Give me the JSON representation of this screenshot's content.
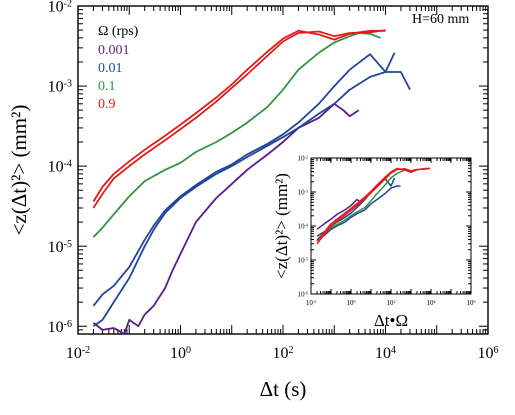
{
  "chart_data": {
    "type": "line",
    "annotation": "H=60 mm",
    "legend_title": "Ω (rps)",
    "legend_placement": "top-left",
    "xlabel": "Δt (s)",
    "ylabel": "<z(Δt)²> (mm²)",
    "xscale": "log",
    "yscale": "log",
    "xlim": [
      0.01,
      1000000
    ],
    "ylim": [
      8e-07,
      0.01
    ],
    "x_tick_labels": [
      {
        "base": "10",
        "exp": "-2"
      },
      {
        "base": "10",
        "exp": "0"
      },
      {
        "base": "10",
        "exp": "2"
      },
      {
        "base": "10",
        "exp": "4"
      },
      {
        "base": "10",
        "exp": "6"
      }
    ],
    "y_tick_labels": [
      {
        "base": "10",
        "exp": "-6"
      },
      {
        "base": "10",
        "exp": "-5"
      },
      {
        "base": "10",
        "exp": "-4"
      },
      {
        "base": "10",
        "exp": "-3"
      },
      {
        "base": "10",
        "exp": "-2"
      }
    ],
    "series": [
      {
        "name": "0.001",
        "color": "#5b1a8c",
        "runs": [
          {
            "x": [
              0.02,
              0.03,
              0.05,
              0.08,
              0.1,
              0.15,
              0.2,
              0.3,
              0.5,
              0.7,
              1,
              2,
              5,
              10,
              20,
              50,
              100,
              200,
              500,
              1000,
              1500,
              2000,
              3000
            ],
            "y": [
              1.1e-06,
              9e-07,
              9.5e-07,
              8e-07,
              1.2e-06,
              1e-06,
              1.4e-06,
              1.8e-06,
              3e-06,
              5e-06,
              8e-06,
              2e-05,
              4e-05,
              6e-05,
              9e-05,
              0.00014,
              0.0002,
              0.0003,
              0.0004,
              0.0006,
              0.0005,
              0.00042,
              0.0005
            ]
          }
        ]
      },
      {
        "name": "0.01",
        "color": "#22459a",
        "runs": [
          {
            "x": [
              0.02,
              0.03,
              0.05,
              0.1,
              0.2,
              0.3,
              0.5,
              1,
              2,
              5,
              10,
              20,
              50,
              100,
              200,
              500,
              1000,
              2000,
              5000,
              10000,
              20000,
              30000
            ],
            "y": [
              1e-06,
              1.2e-06,
              2e-06,
              4e-06,
              1e-05,
              1.6e-05,
              2.6e-05,
              4e-05,
              5.5e-05,
              8e-05,
              0.0001,
              0.00013,
              0.00018,
              0.00023,
              0.0003,
              0.00045,
              0.0006,
              0.0009,
              0.0013,
              0.0015,
              0.0015,
              0.0009
            ]
          },
          {
            "x": [
              0.02,
              0.03,
              0.05,
              0.1,
              0.2,
              0.3,
              0.5,
              1,
              2,
              5,
              10,
              20,
              50,
              100,
              200,
              500,
              1000,
              2000,
              5000,
              10000,
              15000
            ],
            "y": [
              1.8e-06,
              2.5e-06,
              3.2e-06,
              5.5e-06,
              1.2e-05,
              1.8e-05,
              2.8e-05,
              4.2e-05,
              5.8e-05,
              8.5e-05,
              0.000105,
              0.00014,
              0.00019,
              0.00025,
              0.00035,
              0.0006,
              0.001,
              0.0016,
              0.0025,
              0.0015,
              0.0026
            ]
          }
        ]
      },
      {
        "name": "0.1",
        "color": "#2f9440",
        "runs": [
          {
            "x": [
              0.02,
              0.03,
              0.05,
              0.1,
              0.2,
              0.5,
              1,
              2,
              5,
              10,
              20,
              50,
              100,
              200,
              500,
              1000,
              2000,
              3000,
              5000,
              8000
            ],
            "y": [
              1.3e-05,
              1.7e-05,
              2.5e-05,
              4.2e-05,
              6.5e-05,
              9e-05,
              0.00011,
              0.00015,
              0.0002,
              0.00026,
              0.00035,
              0.00055,
              0.0009,
              0.0016,
              0.0026,
              0.0035,
              0.0042,
              0.0046,
              0.0045,
              0.004
            ]
          }
        ]
      },
      {
        "name": "0.9",
        "color": "#e01c1c",
        "runs": [
          {
            "x": [
              0.02,
              0.03,
              0.05,
              0.1,
              0.2,
              0.5,
              1,
              2,
              5,
              10,
              20,
              50,
              100,
              200,
              500,
              1000,
              2000,
              5000,
              10000
            ],
            "y": [
              3e-05,
              4.5e-05,
              7e-05,
              0.0001,
              0.00014,
              0.00021,
              0.00029,
              0.0004,
              0.00064,
              0.00095,
              0.0014,
              0.0024,
              0.0036,
              0.0046,
              0.0048,
              0.0042,
              0.0046,
              0.0047,
              0.005
            ]
          },
          {
            "x": [
              0.02,
              0.03,
              0.05,
              0.1,
              0.2,
              0.5,
              1,
              2,
              5,
              10,
              20,
              50,
              100,
              200,
              500,
              1000,
              2000,
              5000,
              10000
            ],
            "y": [
              3.6e-05,
              5.5e-05,
              8e-05,
              0.000115,
              0.00016,
              0.00024,
              0.00033,
              0.00046,
              0.00072,
              0.00105,
              0.0016,
              0.0027,
              0.0039,
              0.0049,
              0.0044,
              0.0038,
              0.0045,
              0.0049,
              0.0049
            ]
          }
        ]
      }
    ],
    "inset": {
      "xlabel": "Δt•Ω",
      "ylabel": "<z(Δt)²> (mm²)",
      "xlim": [
        0.01,
        1000000
      ],
      "ylim": [
        1e-06,
        0.01
      ],
      "x_tick_labels": [
        {
          "base": "10",
          "exp": "-2"
        },
        {
          "base": "10",
          "exp": "0"
        },
        {
          "base": "10",
          "exp": "2"
        },
        {
          "base": "10",
          "exp": "4"
        },
        {
          "base": "10",
          "exp": "6"
        }
      ],
      "y_tick_labels": [
        {
          "base": "10",
          "exp": "-6"
        },
        {
          "base": "10",
          "exp": "-5"
        },
        {
          "base": "10",
          "exp": "-4"
        },
        {
          "base": "10",
          "exp": "-3"
        },
        {
          "base": "10",
          "exp": "-2"
        }
      ],
      "series": [
        {
          "name": "0.001",
          "color": "#5b1a8c",
          "runs": [
            {
              "x": [
                0.02,
                0.05,
                0.1,
                0.2,
                0.5,
                1,
                2,
                3
              ],
              "y": [
                8e-05,
                0.00012,
                0.00016,
                0.00022,
                0.0003,
                0.0004,
                0.0006,
                0.0005
              ]
            }
          ]
        },
        {
          "name": "0.01",
          "color": "#22459a",
          "runs": [
            {
              "x": [
                0.02,
                0.05,
                0.1,
                0.2,
                0.5,
                1,
                2,
                5,
                10,
                20,
                50,
                100,
                200,
                300
              ],
              "y": [
                4e-05,
                5.5e-05,
                8e-05,
                0.0001,
                0.00013,
                0.00018,
                0.00023,
                0.0003,
                0.00045,
                0.0006,
                0.0009,
                0.0013,
                0.0015,
                0.0015
              ]
            },
            {
              "x": [
                0.02,
                0.05,
                0.1,
                0.2,
                0.5,
                1,
                2,
                5,
                10,
                20,
                50,
                100,
                150
              ],
              "y": [
                5e-05,
                7e-05,
                0.0001,
                0.00013,
                0.00018,
                0.00024,
                0.00035,
                0.0006,
                0.001,
                0.0016,
                0.0025,
                0.0015,
                0.0026
              ]
            }
          ]
        },
        {
          "name": "0.1",
          "color": "#2f9440",
          "runs": [
            {
              "x": [
                0.02,
                0.05,
                0.1,
                0.2,
                0.5,
                1,
                2,
                5,
                10,
                20,
                50,
                100,
                200,
                500,
                800
              ],
              "y": [
                4e-05,
                6.5e-05,
                9e-05,
                0.00011,
                0.00015,
                0.0002,
                0.00026,
                0.00035,
                0.00055,
                0.0009,
                0.0016,
                0.0026,
                0.0035,
                0.0045,
                0.004
              ]
            }
          ]
        },
        {
          "name": "0.9",
          "color": "#e01c1c",
          "runs": [
            {
              "x": [
                0.02,
                0.05,
                0.1,
                0.2,
                0.5,
                1,
                2,
                5,
                10,
                20,
                50,
                100,
                200,
                500,
                1000,
                2000,
                5000,
                9000
              ],
              "y": [
                3e-05,
                6e-05,
                0.0001,
                0.00014,
                0.00021,
                0.00029,
                0.0004,
                0.00064,
                0.00095,
                0.0014,
                0.0024,
                0.0036,
                0.0046,
                0.0048,
                0.0042,
                0.0046,
                0.0047,
                0.005
              ]
            },
            {
              "x": [
                0.02,
                0.05,
                0.1,
                0.2,
                0.5,
                1,
                2,
                5,
                10,
                20,
                50,
                100,
                200,
                500,
                1000,
                2000,
                5000,
                9000
              ],
              "y": [
                3.6e-05,
                7e-05,
                0.000115,
                0.00016,
                0.00024,
                0.00033,
                0.00046,
                0.00072,
                0.00105,
                0.0016,
                0.0027,
                0.0039,
                0.0049,
                0.0044,
                0.0038,
                0.0045,
                0.0049,
                0.0049
              ]
            }
          ]
        }
      ]
    }
  }
}
